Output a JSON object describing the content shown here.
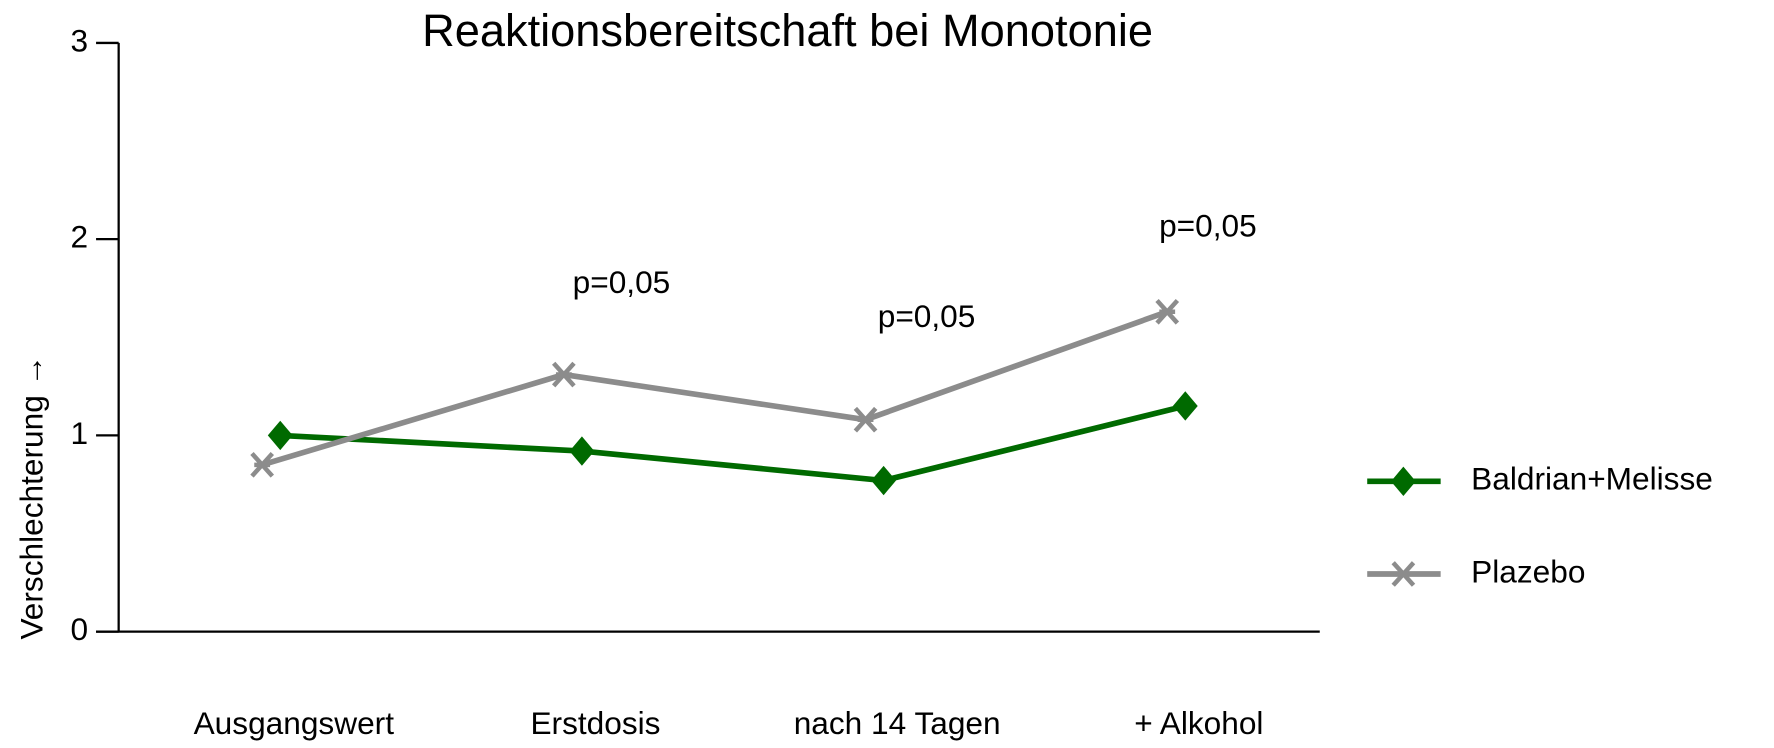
{
  "chart_data": {
    "type": "line",
    "title": "Reaktionsbereitschaft bei Monotonie",
    "y_label": "Verschlechterung →",
    "categories": [
      "Ausgangswert",
      "Erstdosis",
      "nach 14 Tagen",
      "+ Alkohol"
    ],
    "series": [
      {
        "name": "Baldrian+Melisse",
        "color": "#006a00",
        "marker": "diamond",
        "values": [
          1.0,
          0.92,
          0.77,
          1.15
        ]
      },
      {
        "name": "Plazebo",
        "color": "#8c8c8c",
        "marker": "x",
        "values": [
          0.85,
          1.31,
          1.08,
          1.63
        ]
      }
    ],
    "annotations": [
      "p=0,05",
      "p=0,05",
      "p=0,05"
    ],
    "ylim": [
      0,
      3
    ],
    "yticks": [
      0,
      1,
      2,
      3
    ],
    "grid": false,
    "legend": "right"
  }
}
